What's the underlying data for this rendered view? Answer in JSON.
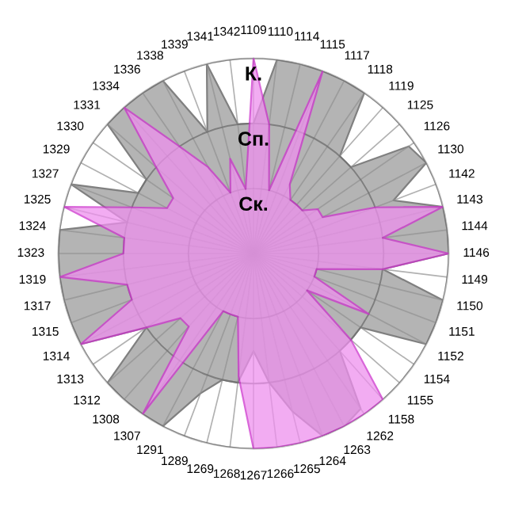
{
  "chart_data": {
    "type": "radar",
    "categories": [
      "1109",
      "1110",
      "1114",
      "1115",
      "1117",
      "1118",
      "1119",
      "1125",
      "1126",
      "1130",
      "1142",
      "1143",
      "1144",
      "1146",
      "1149",
      "1150",
      "1151",
      "1152",
      "1154",
      "1155",
      "1158",
      "1262",
      "1263",
      "1264",
      "1265",
      "1266",
      "1267",
      "1268",
      "1269",
      "1289",
      "1291",
      "1307",
      "1308",
      "1312",
      "1313",
      "1314",
      "1315",
      "1317",
      "1319",
      "1323",
      "1324",
      "1325",
      "1327",
      "1329",
      "1330",
      "1331",
      "1334",
      "1336",
      "1338",
      "1339",
      "1341",
      "1342"
    ],
    "ylim": [
      0,
      3
    ],
    "yticks": [
      {
        "value": 1,
        "label": "Ск."
      },
      {
        "value": 2,
        "label": "Сп."
      },
      {
        "value": 3,
        "label": "К."
      }
    ],
    "grid": true,
    "series": [
      {
        "color": "#b4b4b4",
        "values": [
          2.0,
          3.0,
          3.0,
          3.0,
          3.0,
          3.0,
          2.0,
          2.0,
          2.9,
          3.0,
          2.3,
          3.0,
          3.0,
          3.0,
          2.0,
          3.0,
          3.0,
          3.0,
          2.0,
          2.0,
          2.0,
          2.9,
          3.0,
          3.0,
          2.5,
          2.0,
          1.5,
          2.0,
          2.0,
          2.3,
          3.0,
          3.0,
          3.0,
          3.0,
          2.0,
          3.0,
          3.0,
          3.0,
          3.0,
          3.0,
          3.0,
          2.0,
          3.0,
          2.0,
          2.0,
          3.0,
          3.0,
          3.0,
          3.0,
          2.0,
          3.0,
          2.0
        ]
      },
      {
        "color": "#ee90ee",
        "values": [
          3.0,
          2.0,
          1.0,
          3.0,
          1.2,
          1.0,
          1.0,
          1.0,
          1.2,
          1.2,
          2.0,
          3.0,
          2.0,
          3.0,
          2.0,
          1.0,
          1.0,
          2.0,
          1.0,
          2.0,
          3.0,
          3.0,
          3.0,
          3.0,
          3.0,
          3.0,
          3.0,
          1.9,
          1.0,
          1.0,
          1.0,
          3.0,
          1.5,
          1.5,
          2.0,
          3.0,
          2.0,
          2.0,
          3.0,
          2.0,
          2.0,
          3.0,
          2.0,
          1.5,
          1.5,
          2.0,
          3.0,
          2.0,
          1.5,
          1.0,
          1.5,
          1.0
        ]
      }
    ]
  }
}
